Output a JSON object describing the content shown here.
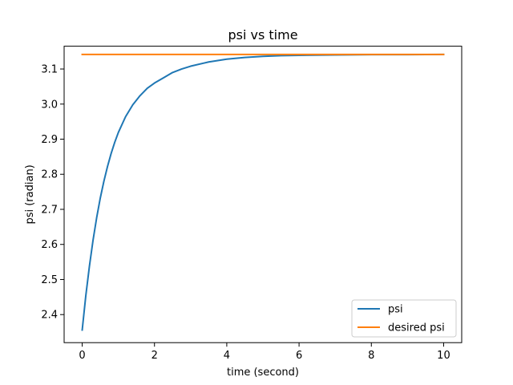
{
  "chart_data": {
    "type": "line",
    "title": "psi vs time",
    "xlabel": "time (second)",
    "ylabel": "psi (radian)",
    "xlim": [
      -0.5,
      10.5
    ],
    "ylim": [
      2.32,
      3.165
    ],
    "xticks": [
      0,
      2,
      4,
      6,
      8,
      10
    ],
    "xtick_labels": [
      "0",
      "2",
      "4",
      "6",
      "8",
      "10"
    ],
    "yticks": [
      2.4,
      2.5,
      2.6,
      2.7,
      2.8,
      2.9,
      3.0,
      3.1
    ],
    "ytick_labels": [
      "2.4",
      "2.5",
      "2.6",
      "2.7",
      "2.8",
      "2.9",
      "3.0",
      "3.1"
    ],
    "grid": false,
    "legend_position": "lower-right",
    "series": [
      {
        "name": "psi",
        "color": "#1f77b4",
        "x": [
          0,
          0.1,
          0.2,
          0.3,
          0.4,
          0.5,
          0.6,
          0.7,
          0.8,
          0.9,
          1.0,
          1.2,
          1.4,
          1.6,
          1.8,
          2.0,
          2.25,
          2.5,
          2.75,
          3.0,
          3.5,
          4.0,
          4.5,
          5.0,
          5.5,
          6.0,
          7.0,
          8.0,
          9.0,
          10.0
        ],
        "y": [
          2.356,
          2.454,
          2.538,
          2.612,
          2.676,
          2.732,
          2.78,
          2.822,
          2.859,
          2.891,
          2.919,
          2.964,
          2.998,
          3.024,
          3.045,
          3.06,
          3.075,
          3.09,
          3.1,
          3.108,
          3.12,
          3.128,
          3.133,
          3.136,
          3.138,
          3.139,
          3.14,
          3.141,
          3.141,
          3.1414
        ]
      },
      {
        "name": "desired psi",
        "color": "#ff7f0e",
        "x": [
          0,
          10
        ],
        "y": [
          3.1416,
          3.1416
        ]
      }
    ]
  }
}
